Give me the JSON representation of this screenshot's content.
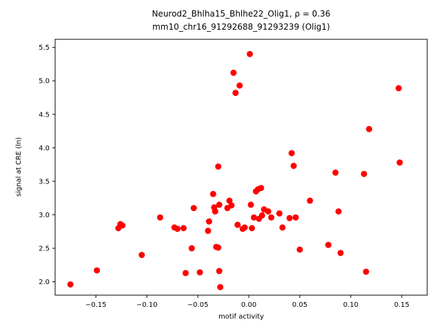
{
  "figure": {
    "title_line1": "Neurod2_Bhlha15_Bhlhe22_Olig1, ρ = 0.36",
    "title_line2": "mm10_chr16_91292688_91293239 (Olig1)"
  },
  "chart_data": {
    "type": "scatter",
    "title": "Neurod2_Bhlha15_Bhlhe22_Olig1, ρ = 0.36\nmm10_chr16_91292688_91293239 (Olig1)",
    "xlabel": "motif activity",
    "ylabel": "signal at CRE (ln)",
    "marker_color": "#ff0000",
    "grid": false,
    "legend": "none",
    "xlim": [
      -0.19,
      0.175
    ],
    "ylim": [
      1.8,
      5.62
    ],
    "xticks": {
      "values": [
        -0.15,
        -0.1,
        -0.05,
        0.0,
        0.05,
        0.1,
        0.15
      ],
      "labels": [
        "−0.15",
        "−0.10",
        "−0.05",
        "0.00",
        "0.05",
        "0.10",
        "0.15"
      ]
    },
    "yticks": {
      "values": [
        2.0,
        2.5,
        3.0,
        3.5,
        4.0,
        4.5,
        5.0,
        5.5
      ],
      "labels": [
        "2.0",
        "2.5",
        "3.0",
        "3.5",
        "4.0",
        "4.5",
        "5.0",
        "5.5"
      ]
    },
    "points": [
      [
        -0.175,
        1.96
      ],
      [
        -0.149,
        2.17
      ],
      [
        -0.128,
        2.8
      ],
      [
        -0.126,
        2.86
      ],
      [
        -0.124,
        2.84
      ],
      [
        -0.105,
        2.4
      ],
      [
        -0.087,
        2.96
      ],
      [
        -0.073,
        2.81
      ],
      [
        -0.07,
        2.79
      ],
      [
        -0.064,
        2.8
      ],
      [
        -0.062,
        2.13
      ],
      [
        -0.056,
        2.5
      ],
      [
        -0.054,
        3.1
      ],
      [
        -0.048,
        2.14
      ],
      [
        -0.04,
        2.76
      ],
      [
        -0.039,
        2.9
      ],
      [
        -0.035,
        3.31
      ],
      [
        -0.034,
        3.11
      ],
      [
        -0.033,
        3.05
      ],
      [
        -0.032,
        2.52
      ],
      [
        -0.03,
        2.51
      ],
      [
        -0.03,
        3.72
      ],
      [
        -0.029,
        3.15
      ],
      [
        -0.029,
        2.16
      ],
      [
        -0.028,
        1.92
      ],
      [
        -0.021,
        3.1
      ],
      [
        -0.019,
        3.21
      ],
      [
        -0.017,
        3.14
      ],
      [
        -0.015,
        5.12
      ],
      [
        -0.013,
        4.82
      ],
      [
        -0.011,
        2.85
      ],
      [
        -0.009,
        4.93
      ],
      [
        -0.006,
        2.79
      ],
      [
        -0.004,
        2.81
      ],
      [
        0.001,
        5.4
      ],
      [
        0.002,
        3.15
      ],
      [
        0.003,
        2.8
      ],
      [
        0.005,
        2.96
      ],
      [
        0.007,
        3.35
      ],
      [
        0.009,
        3.38
      ],
      [
        0.01,
        2.94
      ],
      [
        0.012,
        3.4
      ],
      [
        0.013,
        2.99
      ],
      [
        0.015,
        3.08
      ],
      [
        0.019,
        3.05
      ],
      [
        0.022,
        2.96
      ],
      [
        0.03,
        3.02
      ],
      [
        0.033,
        2.81
      ],
      [
        0.04,
        2.95
      ],
      [
        0.042,
        3.92
      ],
      [
        0.044,
        3.73
      ],
      [
        0.046,
        2.96
      ],
      [
        0.05,
        2.48
      ],
      [
        0.06,
        3.21
      ],
      [
        0.078,
        2.55
      ],
      [
        0.085,
        3.63
      ],
      [
        0.088,
        3.05
      ],
      [
        0.09,
        2.43
      ],
      [
        0.113,
        3.61
      ],
      [
        0.115,
        2.15
      ],
      [
        0.118,
        4.28
      ],
      [
        0.147,
        4.89
      ],
      [
        0.148,
        3.78
      ]
    ]
  }
}
